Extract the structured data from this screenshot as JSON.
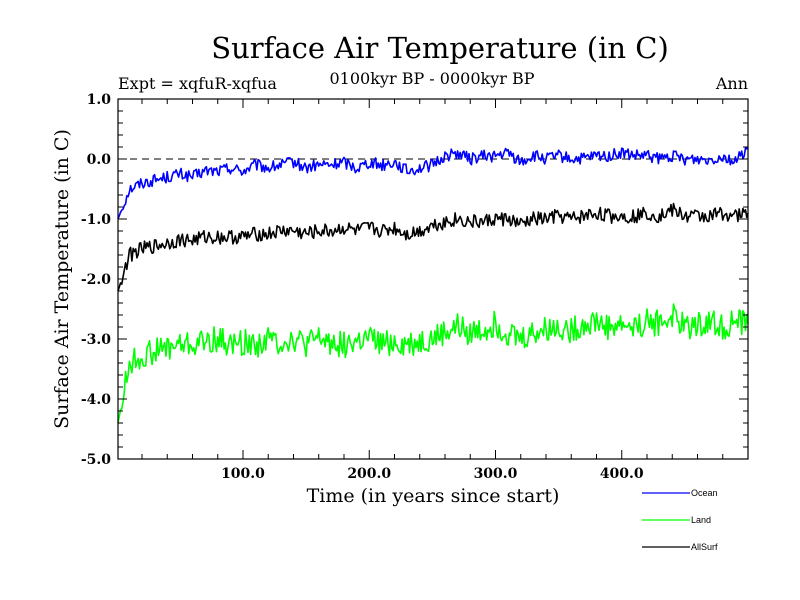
{
  "chart_data": {
    "type": "line",
    "title": "Surface Air Temperature (in C)",
    "subtitle_left": "Expt = xqfuR-xqfua",
    "subtitle_center": "0100kyr BP - 0000kyr BP",
    "subtitle_right": "Ann",
    "xlabel": "Time (in years since start)",
    "ylabel": "Surface Air Temperature (in C)",
    "xlim": [
      1,
      500
    ],
    "ylim": [
      -5.0,
      1.0
    ],
    "x_ticks": [
      100,
      200,
      300,
      400
    ],
    "x_tick_labels": [
      "100.0",
      "200.0",
      "300.0",
      "400.0"
    ],
    "y_ticks": [
      -5,
      -4,
      -3,
      -2,
      -1,
      0,
      1
    ],
    "y_tick_labels": [
      "-5.0",
      "-4.0",
      "-3.0",
      "-2.0",
      "-1.0",
      "0.0",
      "1.0"
    ],
    "reference_line": {
      "y": 0.0,
      "style": "dashed"
    },
    "legend_position": "bottom-right",
    "series": [
      {
        "name": "Ocean",
        "color": "#0000ff",
        "x": [
          1,
          10,
          20,
          30,
          40,
          50,
          60,
          70,
          80,
          90,
          100,
          110,
          120,
          130,
          140,
          150,
          160,
          170,
          180,
          190,
          200,
          210,
          220,
          230,
          240,
          250,
          260,
          270,
          280,
          290,
          300,
          310,
          320,
          330,
          340,
          350,
          360,
          370,
          380,
          390,
          400,
          410,
          420,
          430,
          440,
          450,
          460,
          470,
          480,
          490,
          500
        ],
        "values": [
          -1.0,
          -0.5,
          -0.4,
          -0.35,
          -0.3,
          -0.25,
          -0.3,
          -0.2,
          -0.2,
          -0.15,
          -0.2,
          -0.1,
          -0.15,
          -0.1,
          -0.05,
          -0.15,
          -0.1,
          -0.1,
          -0.05,
          -0.15,
          -0.05,
          -0.1,
          -0.05,
          -0.2,
          -0.15,
          -0.1,
          0.05,
          0.1,
          0.0,
          0.05,
          0.05,
          0.1,
          -0.05,
          0.05,
          0.0,
          0.05,
          0.0,
          0.0,
          0.05,
          0.05,
          0.1,
          0.05,
          0.05,
          0.0,
          0.05,
          0.0,
          0.0,
          0.0,
          0.05,
          -0.05,
          0.2
        ]
      },
      {
        "name": "Land",
        "color": "#00ff00",
        "x": [
          1,
          10,
          20,
          30,
          40,
          50,
          60,
          70,
          80,
          90,
          100,
          110,
          120,
          130,
          140,
          150,
          160,
          170,
          180,
          190,
          200,
          210,
          220,
          230,
          240,
          250,
          260,
          270,
          280,
          290,
          300,
          310,
          320,
          330,
          340,
          350,
          360,
          370,
          380,
          390,
          400,
          410,
          420,
          430,
          440,
          450,
          460,
          470,
          480,
          490,
          500
        ],
        "values": [
          -4.4,
          -3.4,
          -3.3,
          -3.2,
          -3.15,
          -3.1,
          -3.1,
          -3.05,
          -3.0,
          -3.1,
          -3.05,
          -3.1,
          -3.0,
          -3.05,
          -3.0,
          -3.1,
          -3.0,
          -3.05,
          -3.1,
          -3.05,
          -3.0,
          -3.1,
          -3.05,
          -3.1,
          -3.05,
          -3.0,
          -2.9,
          -2.8,
          -2.9,
          -2.85,
          -2.75,
          -2.9,
          -3.0,
          -2.9,
          -2.85,
          -2.8,
          -2.85,
          -2.75,
          -2.7,
          -2.8,
          -2.75,
          -2.8,
          -2.7,
          -2.75,
          -2.6,
          -2.8,
          -2.75,
          -2.7,
          -2.8,
          -2.7,
          -2.75
        ]
      },
      {
        "name": "AllSurf",
        "color": "#000000",
        "x": [
          1,
          10,
          20,
          30,
          40,
          50,
          60,
          70,
          80,
          90,
          100,
          110,
          120,
          130,
          140,
          150,
          160,
          170,
          180,
          190,
          200,
          210,
          220,
          230,
          240,
          250,
          260,
          270,
          280,
          290,
          300,
          310,
          320,
          330,
          340,
          350,
          360,
          370,
          380,
          390,
          400,
          410,
          420,
          430,
          440,
          450,
          460,
          470,
          480,
          490,
          500
        ],
        "values": [
          -2.2,
          -1.6,
          -1.5,
          -1.45,
          -1.4,
          -1.35,
          -1.35,
          -1.3,
          -1.3,
          -1.3,
          -1.3,
          -1.25,
          -1.25,
          -1.2,
          -1.2,
          -1.25,
          -1.2,
          -1.2,
          -1.15,
          -1.2,
          -1.15,
          -1.2,
          -1.15,
          -1.25,
          -1.2,
          -1.1,
          -1.05,
          -1.0,
          -1.05,
          -1.05,
          -1.0,
          -1.0,
          -1.1,
          -1.0,
          -1.0,
          -0.95,
          -1.0,
          -0.95,
          -0.9,
          -0.95,
          -0.95,
          -0.95,
          -0.9,
          -0.95,
          -0.85,
          -0.95,
          -0.95,
          -0.95,
          -0.9,
          -0.95,
          -0.9
        ]
      }
    ]
  }
}
